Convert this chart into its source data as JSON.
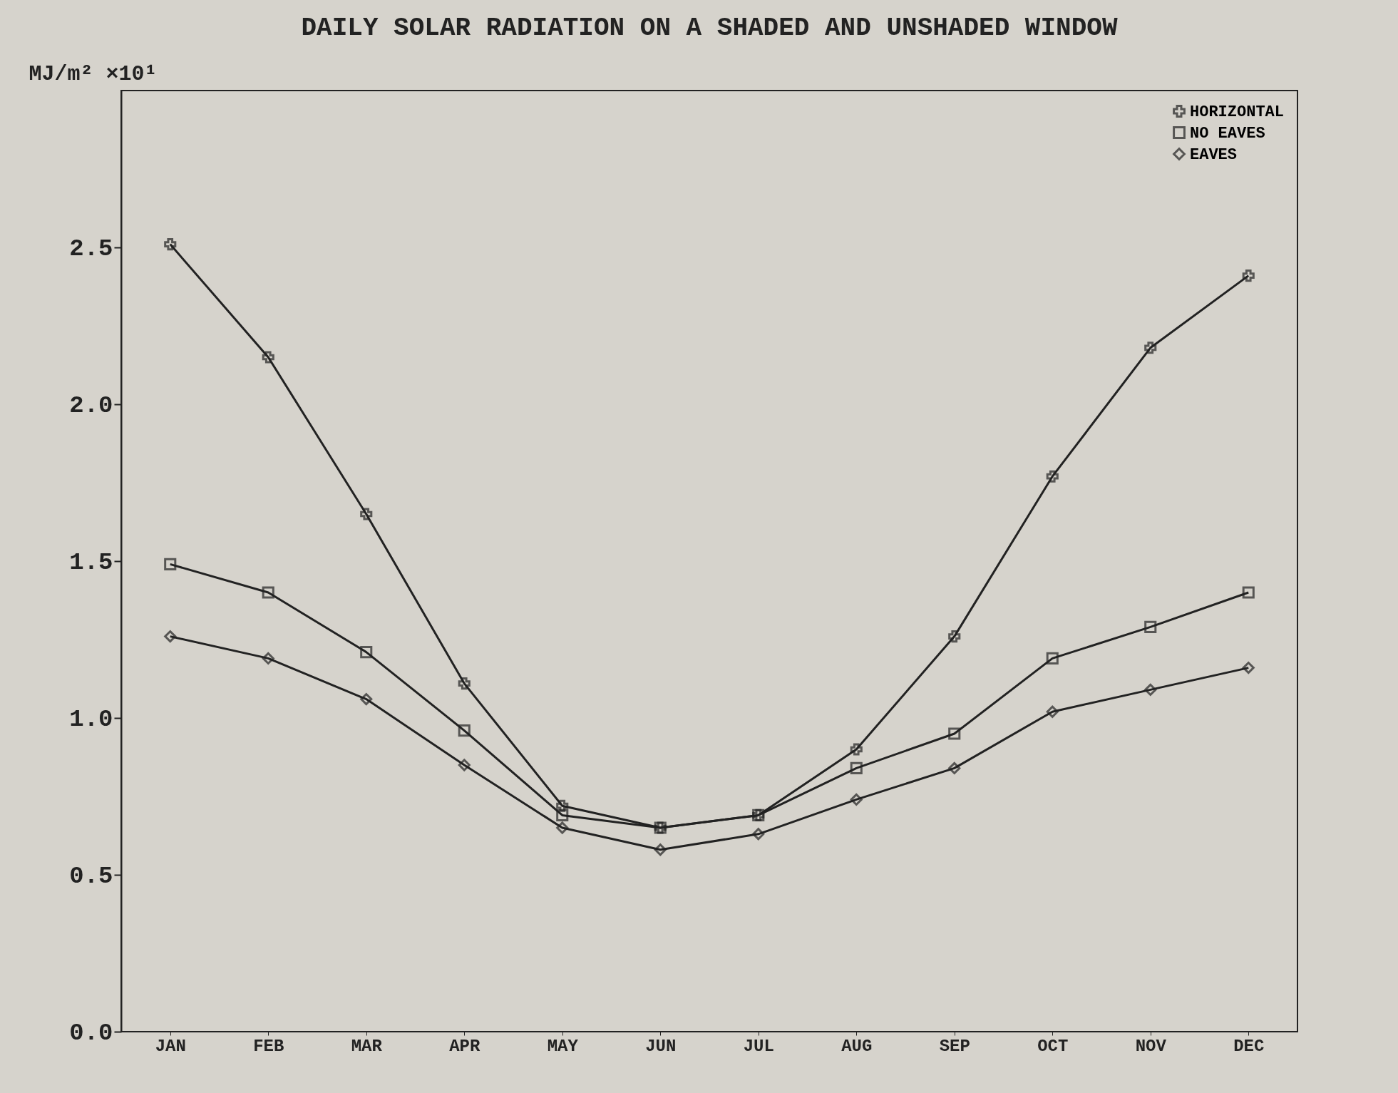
{
  "chart_data": {
    "type": "line",
    "title": "DAILY SOLAR RADIATION ON A SHADED AND UNSHADED WINDOW",
    "ylabel": "MJ/m² ×10¹",
    "categories": [
      "JAN",
      "FEB",
      "MAR",
      "APR",
      "MAY",
      "JUN",
      "JUL",
      "AUG",
      "SEP",
      "OCT",
      "NOV",
      "DEC"
    ],
    "series": [
      {
        "name": "HORIZONTAL",
        "color": "#222222",
        "marker": "cross",
        "values": [
          2.51,
          2.15,
          1.65,
          1.11,
          0.72,
          0.65,
          0.69,
          0.9,
          1.26,
          1.77,
          2.18,
          2.41
        ]
      },
      {
        "name": "NO EAVES",
        "color": "#222222",
        "marker": "square",
        "values": [
          1.49,
          1.4,
          1.21,
          0.96,
          0.69,
          0.65,
          0.69,
          0.84,
          0.95,
          1.19,
          1.29,
          1.4
        ]
      },
      {
        "name": "EAVES",
        "color": "#222222",
        "marker": "diamond",
        "values": [
          1.26,
          1.19,
          1.06,
          0.85,
          0.65,
          0.58,
          0.63,
          0.74,
          0.84,
          1.02,
          1.09,
          1.16
        ]
      }
    ],
    "ylim": [
      0,
      3.0
    ],
    "yticks": [
      {
        "value": 0,
        "label": "0.0"
      },
      {
        "value": 0.5,
        "label": "0.5"
      },
      {
        "value": 1,
        "label": "1.0"
      },
      {
        "value": 1.5,
        "label": "1.5"
      },
      {
        "value": 2,
        "label": "2.0"
      },
      {
        "value": 2.5,
        "label": "2.5"
      }
    ],
    "grid": false,
    "legend": "top right",
    "line_style": "solid"
  }
}
